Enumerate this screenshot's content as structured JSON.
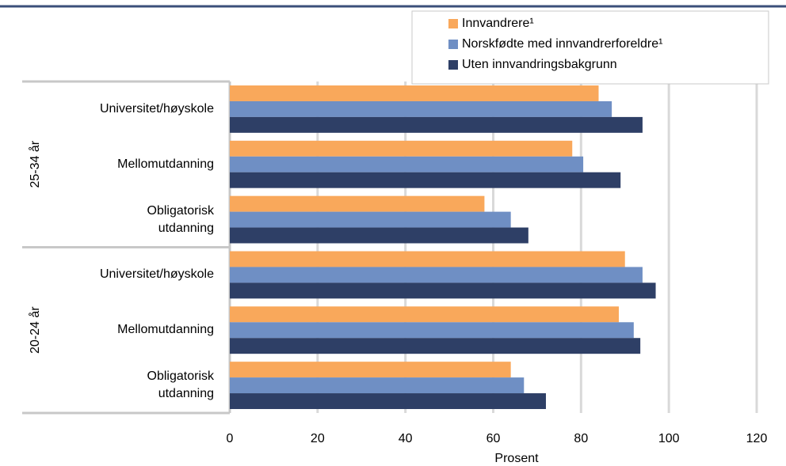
{
  "chart_data": {
    "type": "grouped-barh",
    "xlabel": "Prosent",
    "groups": [
      "25-34 år",
      "20-24 år"
    ],
    "categories": [
      [
        "Universitet/høyskole",
        "Mellomutdanning",
        "Obligatorisk\nutdanning"
      ],
      [
        "Universitet/høyskole",
        "Mellomutdanning",
        "Obligatorisk\nutdanning"
      ]
    ],
    "series": [
      {
        "name": "Innvandrere¹",
        "color": "#f9a85b",
        "values": [
          [
            84,
            78,
            58
          ],
          [
            90,
            88.6,
            64
          ]
        ]
      },
      {
        "name": "Norskfødte med innvandrerforeldre¹",
        "color": "#6f8fc4",
        "values": [
          [
            87,
            80.5,
            64
          ],
          [
            94,
            92,
            67
          ]
        ]
      },
      {
        "name": "Uten innvandringsbakgrunn",
        "color": "#2e3f66",
        "values": [
          [
            94,
            89,
            68
          ],
          [
            97,
            93.5,
            72
          ]
        ]
      }
    ],
    "xlim": [
      0,
      120
    ],
    "xticks": [
      0,
      20,
      40,
      60,
      80,
      100,
      120
    ],
    "grid": true
  }
}
